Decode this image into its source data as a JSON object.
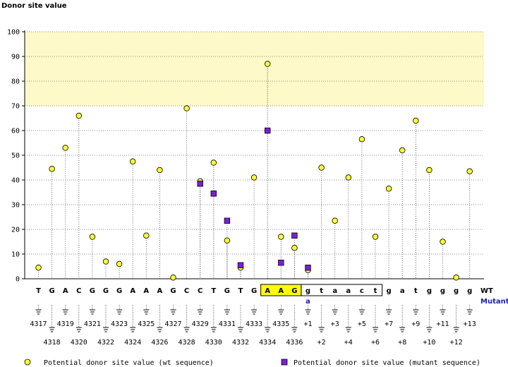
{
  "chart_data": {
    "type": "scatter",
    "title": "Donor site value",
    "ylabel": "Donor site value",
    "ylim": [
      0,
      100
    ],
    "yticks": [
      0,
      10,
      20,
      30,
      40,
      50,
      60,
      70,
      80,
      90,
      100
    ],
    "highlight_band": [
      70,
      100
    ],
    "sequence": [
      "T",
      "G",
      "A",
      "C",
      "G",
      "G",
      "G",
      "A",
      "A",
      "A",
      "G",
      "C",
      "C",
      "T",
      "G",
      "T",
      "G",
      "A",
      "A",
      "G",
      "g",
      "t",
      "a",
      "a",
      "c",
      "t",
      "g",
      "a",
      "t",
      "g",
      "g",
      "g",
      "g"
    ],
    "mutant_base": "a",
    "mutant_index": 20,
    "boxed_yellow": [
      17,
      19
    ],
    "boxed_white": [
      20,
      25
    ],
    "positions": [
      "4317",
      "4318",
      "4319",
      "4320",
      "4321",
      "4322",
      "4323",
      "4324",
      "4325",
      "4326",
      "4327",
      "4328",
      "4329",
      "4330",
      "4331",
      "4332",
      "4333",
      "4334",
      "4335",
      "4336",
      "+1",
      "+2",
      "+3",
      "+4",
      "+5",
      "+6",
      "+7",
      "+8",
      "+9",
      "+10",
      "+11",
      "+12",
      "+13"
    ],
    "wt_values": [
      4.5,
      44.5,
      53,
      66,
      17,
      7,
      6,
      47.5,
      17.5,
      44,
      0.5,
      69,
      39.5,
      47,
      15.5,
      4.5,
      41,
      87,
      17,
      12.5,
      3.5,
      45,
      23.5,
      41,
      56.5,
      17,
      36.5,
      52,
      64,
      44,
      15,
      0.5,
      43.5
    ],
    "mutant_points": [
      {
        "index": 12,
        "value": 38.5
      },
      {
        "index": 13,
        "value": 34.5
      },
      {
        "index": 14,
        "value": 23.5
      },
      {
        "index": 15,
        "value": 5.5
      },
      {
        "index": 17,
        "value": 60
      },
      {
        "index": 18,
        "value": 6.5
      },
      {
        "index": 19,
        "value": 17.5
      },
      {
        "index": 20,
        "value": 4.5
      }
    ]
  },
  "labels": {
    "y_title": "Donor site value",
    "wt_row": "WT",
    "mutant_row": "Mutant",
    "legend_wt": "Potential donor site value (wt sequence)",
    "legend_mutant": "Potential donor site value (mutant sequence)"
  },
  "colors": {
    "wt_marker": "#ffff33",
    "mutant_marker": "#7a1fd6",
    "band": "#fdf9c8",
    "box_yellow": "#ffff00",
    "mutant_text": "#1a22b0"
  }
}
